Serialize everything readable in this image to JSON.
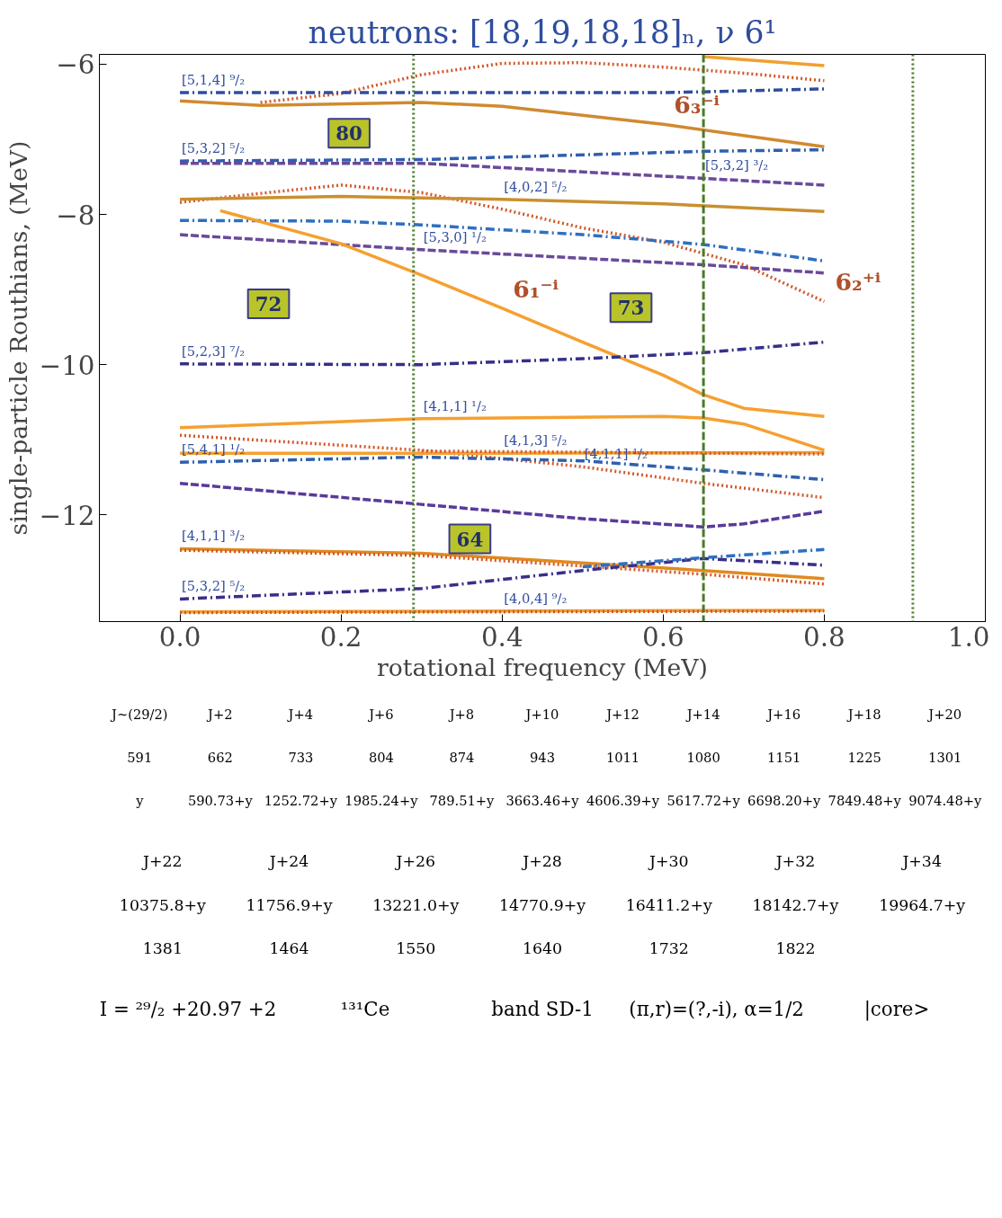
{
  "chart_data": [
    {
      "type": "line",
      "title": "neutrons: [18,19,18,18]ₙ, ν 6¹",
      "xlabel": "rotational frequency (MeV)",
      "ylabel": "single-particle Routhians, (MeV)",
      "xlim": [
        -0.1,
        1.0
      ],
      "ylim": [
        -13.42,
        -5.87
      ],
      "xticks": [
        {
          "value": 0,
          "label": "0.0"
        },
        0.2,
        0.4,
        0.6,
        0.8,
        {
          "value": 1,
          "label": "1.0"
        }
      ],
      "yticks": [
        -6,
        -8,
        -10,
        -12
      ],
      "series": [
        {
          "color": "#f0a030",
          "line_style": "solid",
          "x": [
            0.65,
            0.8
          ],
          "values": [
            -5.9,
            -6.02
          ]
        },
        {
          "color": "#d2592a",
          "line_style": "dotted",
          "x": [
            0.1,
            0.2,
            0.3,
            0.4,
            0.5,
            0.6,
            0.7,
            0.8
          ],
          "values": [
            -6.51,
            -6.39,
            -6.14,
            -5.99,
            -5.98,
            -6.04,
            -6.12,
            -6.22
          ]
        },
        {
          "color": "#2f4d9e",
          "line_style": "dashdot",
          "x": [
            0,
            0.6,
            0.8
          ],
          "values": [
            -6.38,
            -6.38,
            -6.33
          ]
        },
        {
          "color": "#d08a30",
          "line_style": "solid",
          "x": [
            0,
            0.1,
            0.3,
            0.4,
            0.6,
            0.8
          ],
          "values": [
            -6.49,
            -6.55,
            -6.51,
            -6.56,
            -6.8,
            -7.1
          ]
        },
        {
          "color": "#2f5fb0",
          "line_style": "dashdot",
          "x": [
            0,
            0.3,
            0.65,
            0.8
          ],
          "values": [
            -7.29,
            -7.27,
            -7.16,
            -7.14
          ]
        },
        {
          "color": "#6a4a9a",
          "line_style": "dashed",
          "x": [
            0,
            0.3,
            0.65,
            0.8
          ],
          "values": [
            -7.32,
            -7.32,
            -7.52,
            -7.61
          ]
        },
        {
          "color": "#d2592a",
          "line_style": "dotted",
          "x": [
            0,
            0.1,
            0.2,
            0.3,
            0.4,
            0.5,
            0.6,
            0.7,
            0.8
          ],
          "values": [
            -7.84,
            -7.72,
            -7.61,
            -7.71,
            -7.93,
            -8.18,
            -8.37,
            -8.67,
            -9.16
          ]
        },
        {
          "color": "#c89030",
          "line_style": "solid",
          "x": [
            0,
            0.2,
            0.4,
            0.6,
            0.8
          ],
          "values": [
            -7.8,
            -7.76,
            -7.8,
            -7.86,
            -7.96
          ]
        },
        {
          "color": "#2f6fc0",
          "line_style": "dashdot",
          "x": [
            0,
            0.2,
            0.3,
            0.5,
            0.65,
            0.8
          ],
          "values": [
            -8.08,
            -8.09,
            -8.14,
            -8.27,
            -8.4,
            -8.62
          ]
        },
        {
          "color": "#6a4a9a",
          "line_style": "dashed",
          "x": [
            0,
            0.3,
            0.65,
            0.8
          ],
          "values": [
            -8.27,
            -8.47,
            -8.67,
            -8.78
          ]
        },
        {
          "color": "#f5a030",
          "line_style": "solid",
          "x": [
            0.05,
            0.2,
            0.3,
            0.4,
            0.5,
            0.6,
            0.65,
            0.7,
            0.8
          ],
          "values": [
            -7.95,
            -8.39,
            -8.81,
            -9.25,
            -9.7,
            -10.14,
            -10.4,
            -10.58,
            -10.69
          ]
        },
        {
          "color": "#35308a",
          "line_style": "dashdot",
          "x": [
            0,
            0.3,
            0.5,
            0.65,
            0.8
          ],
          "values": [
            -9.99,
            -10.0,
            -9.92,
            -9.84,
            -9.7
          ]
        },
        {
          "color": "#f5a030",
          "line_style": "solid",
          "x": [
            0,
            0.3,
            0.6,
            0.65,
            0.7,
            0.8
          ],
          "values": [
            -10.84,
            -10.72,
            -10.69,
            -10.71,
            -10.79,
            -11.14
          ]
        },
        {
          "color": "#d2592a",
          "line_style": "dotted",
          "x": [
            0,
            0.3,
            0.5,
            0.65,
            0.8
          ],
          "values": [
            -10.94,
            -11.14,
            -11.36,
            -11.58,
            -11.77
          ]
        },
        {
          "color": "#f5a030",
          "line_style": "solid",
          "x": [
            0,
            0.4,
            0.8
          ],
          "values": [
            -11.18,
            -11.18,
            -11.17
          ]
        },
        {
          "color": "#d2592a",
          "line_style": "dotted",
          "x": [
            0.3,
            0.8
          ],
          "values": [
            -11.15,
            -11.19
          ]
        },
        {
          "color": "#2f5fb0",
          "line_style": "dashdot",
          "x": [
            0,
            0.3,
            0.5,
            0.65,
            0.8
          ],
          "values": [
            -11.3,
            -11.23,
            -11.28,
            -11.4,
            -11.53
          ]
        },
        {
          "color": "#5a3a9a",
          "line_style": "dashed",
          "x": [
            0,
            0.3,
            0.5,
            0.65,
            0.7,
            0.8
          ],
          "values": [
            -11.58,
            -11.86,
            -12.05,
            -12.16,
            -12.12,
            -11.95
          ]
        },
        {
          "color": "#e08a20",
          "line_style": "solid",
          "x": [
            0,
            0.3,
            0.5,
            0.65,
            0.8
          ],
          "values": [
            -12.45,
            -12.51,
            -12.64,
            -12.74,
            -12.85
          ]
        },
        {
          "color": "#d2592a",
          "line_style": "dotted",
          "x": [
            0,
            0.3,
            0.5,
            0.65,
            0.8
          ],
          "values": [
            -12.47,
            -12.54,
            -12.68,
            -12.79,
            -12.92
          ]
        },
        {
          "color": "#3a2f8a",
          "line_style": "dashdot",
          "x": [
            0,
            0.3,
            0.5,
            0.65,
            0.8
          ],
          "values": [
            -13.12,
            -12.98,
            -12.74,
            -12.58,
            -12.67
          ]
        },
        {
          "color": "#2f6fc0",
          "line_style": "dashdot",
          "x": [
            0.5,
            0.65,
            0.8
          ],
          "values": [
            -12.69,
            -12.57,
            -12.46
          ]
        },
        {
          "color": "#f0a030",
          "line_style": "solid",
          "x": [
            0,
            0.4,
            0.8
          ],
          "values": [
            -13.29,
            -13.28,
            -13.27
          ]
        },
        {
          "color": "#d2592a",
          "line_style": "dotted",
          "x": [
            0,
            0.8
          ],
          "values": [
            -13.3,
            -13.28
          ]
        }
      ],
      "ref_lines": [
        {
          "axis": "x",
          "value": 0.29,
          "label": null,
          "color": "#4a7a2a",
          "line_style": "dotted"
        },
        {
          "axis": "x",
          "value": 0.65,
          "label": null,
          "color": "#4a7a2a",
          "line_style": "dashed"
        },
        {
          "axis": "x",
          "value": 0.91,
          "label": null,
          "color": "#4a7a2a",
          "line_style": "dotted"
        }
      ],
      "annotations": [
        {
          "text": "[5,1,4] ⁹/₂",
          "x": 0,
          "y": -6.38
        },
        {
          "text": "[5,3,2] ⁵/₂",
          "x": 0,
          "y": -7.29
        },
        {
          "text": "[5,3,2] ³/₂",
          "x": 0.65,
          "y": -7.52
        },
        {
          "text": "[4,0,2] ⁵/₂",
          "x": 0.4,
          "y": -7.8
        },
        {
          "text": "[5,3,0] ¹/₂",
          "x": 0.3,
          "y": -8.47
        },
        {
          "text": "[5,2,3] ⁷/₂",
          "x": 0,
          "y": -9.99
        },
        {
          "text": "[4,1,1] ¹/₂",
          "x": 0.3,
          "y": -10.72
        },
        {
          "text": "[4,1,3] ⁵/₂",
          "x": 0.4,
          "y": -11.18
        },
        {
          "text": "[5,4,1] ¹/₂",
          "x": 0,
          "y": -11.3
        },
        {
          "text": "[4,1,1] ¹/₂",
          "x": 0.5,
          "y": -11.36
        },
        {
          "text": "[4,1,1] ³/₂",
          "x": 0,
          "y": -12.45
        },
        {
          "text": "[5,3,2] ⁵/₂",
          "x": 0,
          "y": -13.12
        },
        {
          "text": "[4,0,4] ⁹/₂",
          "x": 0.4,
          "y": -13.28
        },
        "80",
        "72",
        "73",
        "64",
        {
          "text": "6₃⁻ⁱ",
          "x": 0.6,
          "y": -6.8
        },
        {
          "text": "6₁⁻ⁱ",
          "x": 0.4,
          "y": -9.25
        },
        {
          "text": "6₂⁺ⁱ",
          "x": 0.8,
          "y": -9.16
        }
      ]
    },
    {
      "type": "other",
      "annotations": [
        "J~(29/2)",
        "J+2",
        "J+4",
        "J+6",
        "J+8",
        "J+10",
        "J+12",
        "J+14",
        "J+16",
        "J+18",
        "J+20",
        "591",
        "662",
        "733",
        "804",
        "874",
        "943",
        "1011",
        "1080",
        "1151",
        "1225",
        "1301",
        "y",
        "590.73+y",
        "1252.72+y",
        "1985.24+y",
        "789.51+y",
        "3663.46+y",
        "4606.39+y",
        "5617.72+y",
        "6698.20+y",
        "7849.48+y",
        "9074.48+y"
      ]
    },
    {
      "type": "other",
      "annotations": [
        "J+22",
        "J+24",
        "J+26",
        "J+28",
        "J+30",
        "J+32",
        "J+34",
        "10375.8+y",
        "11756.9+y",
        "13221.0+y",
        "14770.9+y",
        "16411.2+y",
        "18142.7+y",
        "19964.7+y",
        "1381",
        "1464",
        "1550",
        "1640",
        "1732",
        "1822"
      ]
    },
    {
      "type": "other",
      "annotations": [
        "I = ²⁹/₂ +20.97 +2",
        "¹³¹Ce",
        "band SD-1",
        "(π,r)=(?,-i),  α=1/2",
        "|core>"
      ]
    }
  ]
}
